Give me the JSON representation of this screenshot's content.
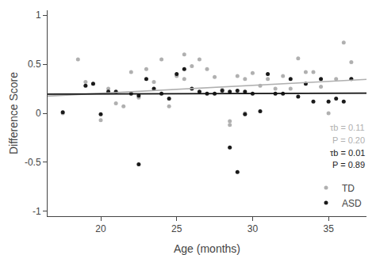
{
  "chart_data": {
    "type": "scatter",
    "xlabel": "Age (months)",
    "ylabel": "Difference Score",
    "xlim": [
      16.5,
      37.5
    ],
    "ylim": [
      -1.05,
      1.05
    ],
    "xticks": [
      20,
      25,
      30,
      35
    ],
    "yticks": [
      -1,
      -0.5,
      0,
      0.5,
      1
    ],
    "grid": false,
    "legend": "lower right",
    "series": [
      {
        "name": "TD",
        "type": "scatter",
        "color": "#b0b0b0",
        "x": [
          17.5,
          18.5,
          19.0,
          19.5,
          20.0,
          20.5,
          21.0,
          21.5,
          22.0,
          22.5,
          23.0,
          23.5,
          24.0,
          24.5,
          25.0,
          25.5,
          25.5,
          26.0,
          26.5,
          27.0,
          27.5,
          28.0,
          28.5,
          28.5,
          29.0,
          29.5,
          29.5,
          30.0,
          30.5,
          31.0,
          31.5,
          32.0,
          32.5,
          33.0,
          33.5,
          34.0,
          34.5,
          35.0,
          35.5,
          36.0,
          36.5,
          36.5
        ],
        "values": [
          0.0,
          0.55,
          0.32,
          0.3,
          -0.07,
          0.25,
          0.1,
          0.07,
          0.42,
          0.16,
          0.45,
          0.32,
          0.55,
          0.07,
          0.38,
          0.35,
          0.6,
          0.48,
          0.55,
          0.45,
          0.37,
          0.24,
          -0.12,
          -0.08,
          0.38,
          0.0,
          0.35,
          0.41,
          0.28,
          0.35,
          0.25,
          0.38,
          0.25,
          0.56,
          0.42,
          0.42,
          0.27,
          0.0,
          0.35,
          0.72,
          0.52,
          0.35
        ]
      },
      {
        "name": "ASD",
        "type": "scatter",
        "color": "#1a1a1a",
        "x": [
          17.5,
          19.0,
          19.5,
          20.0,
          20.5,
          21.0,
          22.0,
          22.5,
          22.5,
          23.0,
          23.5,
          24.0,
          24.5,
          25.0,
          25.5,
          26.0,
          26.5,
          27.0,
          27.5,
          28.0,
          28.5,
          28.5,
          29.0,
          29.0,
          29.5,
          29.5,
          30.0,
          30.5,
          31.0,
          31.5,
          32.0,
          32.5,
          33.0,
          33.5,
          34.0,
          34.5,
          35.0,
          35.5,
          36.0,
          36.5
        ],
        "values": [
          0.01,
          0.28,
          0.3,
          -0.01,
          0.22,
          0.22,
          0.2,
          0.18,
          -0.52,
          0.35,
          0.25,
          0.2,
          0.15,
          0.4,
          0.45,
          0.25,
          0.22,
          0.2,
          0.2,
          0.23,
          0.22,
          -0.35,
          0.23,
          -0.6,
          0.22,
          -0.01,
          0.2,
          0.02,
          0.4,
          0.2,
          0.2,
          0.35,
          0.17,
          0.3,
          0.12,
          0.35,
          0.12,
          0.15,
          0.12,
          0.35
        ]
      },
      {
        "type": "line",
        "color": "#b0b0b0",
        "x": [
          16.5,
          37.5
        ],
        "values": [
          0.175,
          0.345
        ]
      },
      {
        "type": "line",
        "color": "#111111",
        "x": [
          16.5,
          37.5
        ],
        "values": [
          0.195,
          0.205
        ]
      }
    ],
    "annotations": [
      {
        "text": "τb = 0.11",
        "color": "#b0b0b0"
      },
      {
        "text": "P = 0.20",
        "color": "#b0b0b0"
      },
      {
        "text": "τb = 0.01",
        "color": "#1a1a1a"
      },
      {
        "text": "P = 0.89",
        "color": "#1a1a1a"
      }
    ]
  }
}
